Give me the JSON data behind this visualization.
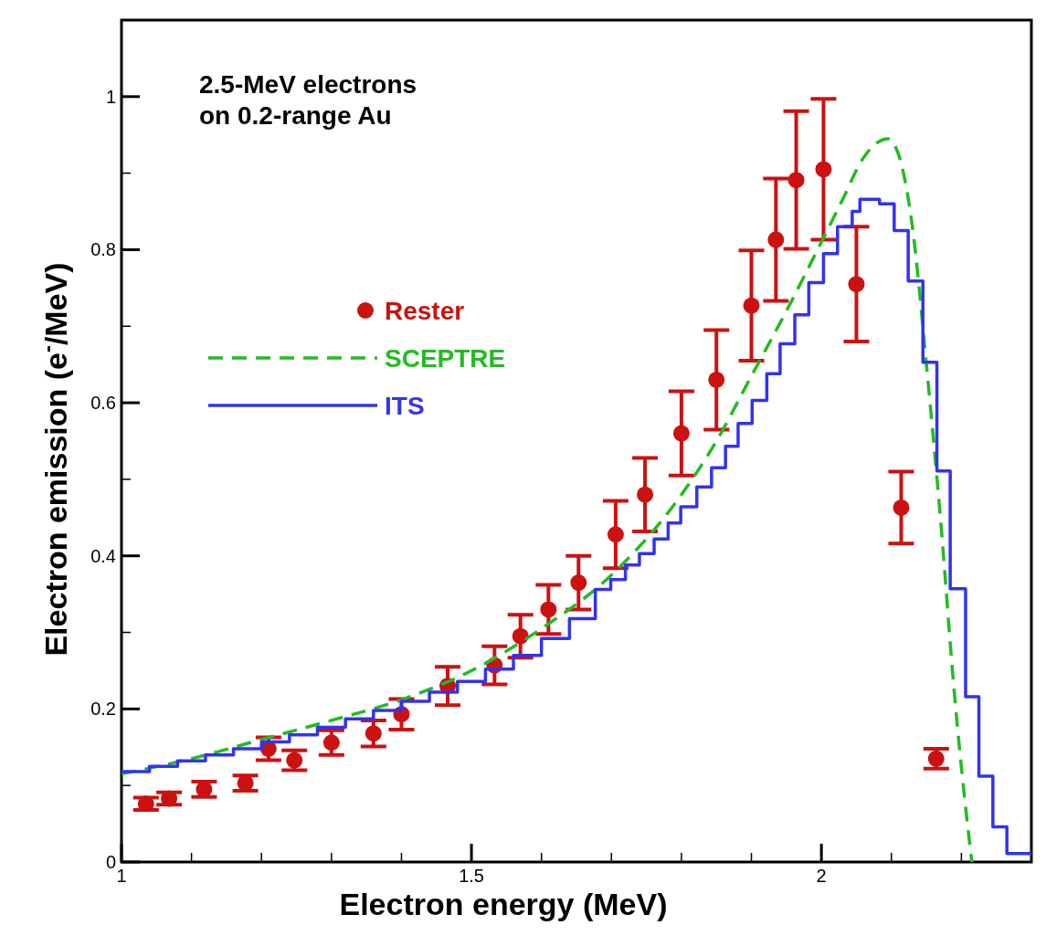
{
  "chart_data": {
    "type": "line",
    "xlabel": "Electron energy (MeV)",
    "ylabel": "Electron emission (e$^{-}$/MeV)",
    "annotations": [
      "2.5-MeV electrons\non 0.2-range Au"
    ],
    "xlim": [
      1,
      2.3
    ],
    "ylim": [
      0,
      1.1
    ],
    "xticks": [
      1,
      {
        "value": 1.1,
        "label": null
      },
      {
        "value": 1.2,
        "label": null
      },
      {
        "value": 1.3,
        "label": null
      },
      {
        "value": 1.4,
        "label": null
      },
      1.5,
      {
        "value": 1.6,
        "label": null
      },
      {
        "value": 1.7,
        "label": null
      },
      {
        "value": 1.8,
        "label": null
      },
      {
        "value": 1.9,
        "label": null
      },
      2,
      {
        "value": 2.1,
        "label": null
      },
      {
        "value": 2.2,
        "label": null
      }
    ],
    "yticks": [
      0,
      {
        "value": 0.1,
        "label": null
      },
      0.2,
      {
        "value": 0.3,
        "label": null
      },
      0.4,
      {
        "value": 0.5,
        "label": null
      },
      0.6,
      {
        "value": 0.7,
        "label": null
      },
      0.8,
      {
        "value": 0.9,
        "label": null
      },
      1,
      {
        "value": 1.1,
        "label": null
      }
    ],
    "grid": false,
    "legend": "top left",
    "series": [
      {
        "name": "Rester",
        "type": "scatter",
        "marker": "circle",
        "color": "#cc1111",
        "x": [
          1.035,
          1.068,
          1.118,
          1.177,
          1.21,
          1.247,
          1.3,
          1.36,
          1.4,
          1.466,
          1.533,
          1.57,
          1.61,
          1.653,
          1.706,
          1.748,
          1.8,
          1.85,
          1.9,
          1.935,
          1.964,
          2.003,
          2.05,
          2.114,
          2.164
        ],
        "values": [
          0.076,
          0.083,
          0.095,
          0.103,
          0.148,
          0.133,
          0.156,
          0.168,
          0.193,
          0.23,
          0.257,
          0.295,
          0.33,
          0.365,
          0.428,
          0.48,
          0.56,
          0.63,
          0.727,
          0.813,
          0.891,
          0.905,
          0.755,
          0.463,
          0.135
        ],
        "errors": [
          0.008,
          0.008,
          0.01,
          0.01,
          0.015,
          0.013,
          0.016,
          0.017,
          0.02,
          0.025,
          0.025,
          0.028,
          0.032,
          0.035,
          0.044,
          0.048,
          0.055,
          0.065,
          0.072,
          0.08,
          0.09,
          0.092,
          0.075,
          0.047,
          0.013
        ]
      },
      {
        "name": "SCEPTRE",
        "line_style": "dashed",
        "color": "#22bb22",
        "x": [
          1.0,
          1.1,
          1.2,
          1.3,
          1.4,
          1.5,
          1.6,
          1.7,
          1.8,
          1.85,
          1.9,
          1.95,
          2.0,
          2.03,
          2.06,
          2.08,
          2.095,
          2.11,
          2.13,
          2.15,
          2.17,
          2.19,
          2.205,
          2.215
        ],
        "values": [
          0.115,
          0.135,
          0.16,
          0.185,
          0.212,
          0.25,
          0.305,
          0.375,
          0.48,
          0.55,
          0.635,
          0.72,
          0.81,
          0.865,
          0.92,
          0.94,
          0.945,
          0.925,
          0.83,
          0.65,
          0.45,
          0.22,
          0.08,
          0
        ]
      },
      {
        "name": "ITS",
        "type": "step",
        "line_style": "solid",
        "color": "#3333ee",
        "x": [
          1.0,
          1.04,
          1.08,
          1.12,
          1.16,
          1.2,
          1.24,
          1.28,
          1.32,
          1.36,
          1.4,
          1.44,
          1.48,
          1.52,
          1.56,
          1.6,
          1.64,
          1.677,
          1.699,
          1.72,
          1.74,
          1.761,
          1.781,
          1.799,
          1.822,
          1.843,
          1.863,
          1.881,
          1.901,
          1.922,
          1.941,
          1.962,
          1.982,
          2.003,
          2.023,
          2.044,
          2.055,
          2.083,
          2.104,
          2.124,
          2.145,
          2.165,
          2.184,
          2.206,
          2.225,
          2.245,
          2.265,
          2.3
        ],
        "values": [
          0.118,
          0.125,
          0.132,
          0.14,
          0.148,
          0.157,
          0.166,
          0.176,
          0.187,
          0.198,
          0.21,
          0.222,
          0.236,
          0.252,
          0.27,
          0.292,
          0.318,
          0.356,
          0.369,
          0.388,
          0.403,
          0.422,
          0.443,
          0.464,
          0.49,
          0.515,
          0.543,
          0.573,
          0.603,
          0.638,
          0.677,
          0.715,
          0.757,
          0.795,
          0.83,
          0.85,
          0.866,
          0.86,
          0.825,
          0.759,
          0.653,
          0.511,
          0.357,
          0.216,
          0.112,
          0.046,
          0.011,
          0.011
        ]
      }
    ]
  }
}
